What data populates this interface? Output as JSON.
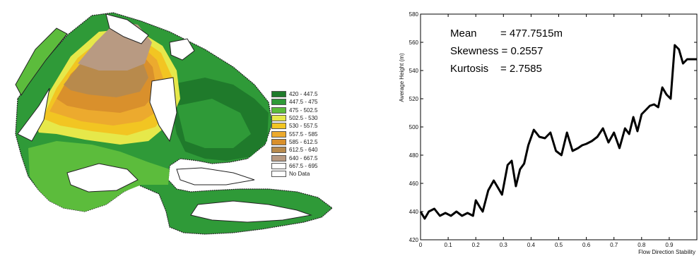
{
  "map": {
    "legend": [
      {
        "label": "420 - 447.5",
        "color": "#1f7a2b"
      },
      {
        "label": "447.5 - 475",
        "color": "#2f9a38"
      },
      {
        "label": "475 - 502.5",
        "color": "#5cbc3c"
      },
      {
        "label": "502.5 - 530",
        "color": "#e6e84a"
      },
      {
        "label": "530 - 557.5",
        "color": "#f2c522"
      },
      {
        "label": "557.5 - 585",
        "color": "#ecaa2e"
      },
      {
        "label": "585 - 612.5",
        "color": "#d9902c"
      },
      {
        "label": "612.5 - 640",
        "color": "#b88a4c"
      },
      {
        "label": "640 - 667.5",
        "color": "#b89a82"
      },
      {
        "label": "667.5 - 695",
        "color": "#ffffff"
      },
      {
        "label": "No Data",
        "color": "#ffffff"
      }
    ]
  },
  "chart_data": {
    "type": "line",
    "title": "",
    "xlabel": "Flow Direction Stability",
    "ylabel": "Average Height (m)",
    "xlim": [
      0,
      1
    ],
    "ylim": [
      420,
      580
    ],
    "xticks": [
      0,
      0.1,
      0.2,
      0.3,
      0.4,
      0.5,
      0.6,
      0.7,
      0.8,
      0.9
    ],
    "xtick_labels": [
      "0",
      "0.1",
      "0.2",
      "0.3",
      "0.4",
      "0.5",
      "0.6",
      "0.7",
      "0.8",
      "0.9"
    ],
    "yticks": [
      420,
      440,
      460,
      480,
      500,
      520,
      540,
      560,
      580
    ],
    "ytick_labels": [
      "420",
      "440",
      "460",
      "480",
      "500",
      "520",
      "540",
      "560",
      "580"
    ],
    "line_color": "#000000",
    "grid": false,
    "annotations": [
      {
        "label": "Mean",
        "value": "= 477.7515m"
      },
      {
        "label": "Skewness = 0.2557",
        "value": ""
      },
      {
        "label": "Kurtosis",
        "value": "= 2.7585"
      }
    ],
    "series": [
      {
        "x": [
          0.0,
          0.015,
          0.03,
          0.05,
          0.07,
          0.09,
          0.11,
          0.13,
          0.15,
          0.17,
          0.19,
          0.2,
          0.215,
          0.225,
          0.245,
          0.265,
          0.28,
          0.295,
          0.315,
          0.33,
          0.345,
          0.36,
          0.375,
          0.39,
          0.41,
          0.43,
          0.45,
          0.47,
          0.49,
          0.51,
          0.53,
          0.55,
          0.57,
          0.585,
          0.6,
          0.62,
          0.64,
          0.66,
          0.68,
          0.7,
          0.72,
          0.74,
          0.755,
          0.77,
          0.785,
          0.8,
          0.815,
          0.83,
          0.845,
          0.86,
          0.875,
          0.89,
          0.905,
          0.92,
          0.935,
          0.95,
          0.965,
          0.975,
          0.99,
          1.0
        ],
        "y": [
          440,
          435,
          440,
          442,
          437,
          439,
          437,
          440,
          437,
          439,
          437,
          448,
          443,
          440,
          455,
          462,
          457,
          452,
          473,
          476,
          458,
          470,
          474,
          487,
          498,
          493,
          492,
          496,
          483,
          480,
          496,
          483,
          485,
          487,
          488,
          490,
          493,
          499,
          489,
          496,
          485,
          499,
          495,
          507,
          497,
          509,
          512,
          515,
          516,
          514,
          528,
          523,
          520,
          558,
          555,
          545,
          548,
          548,
          548,
          548
        ]
      }
    ]
  }
}
